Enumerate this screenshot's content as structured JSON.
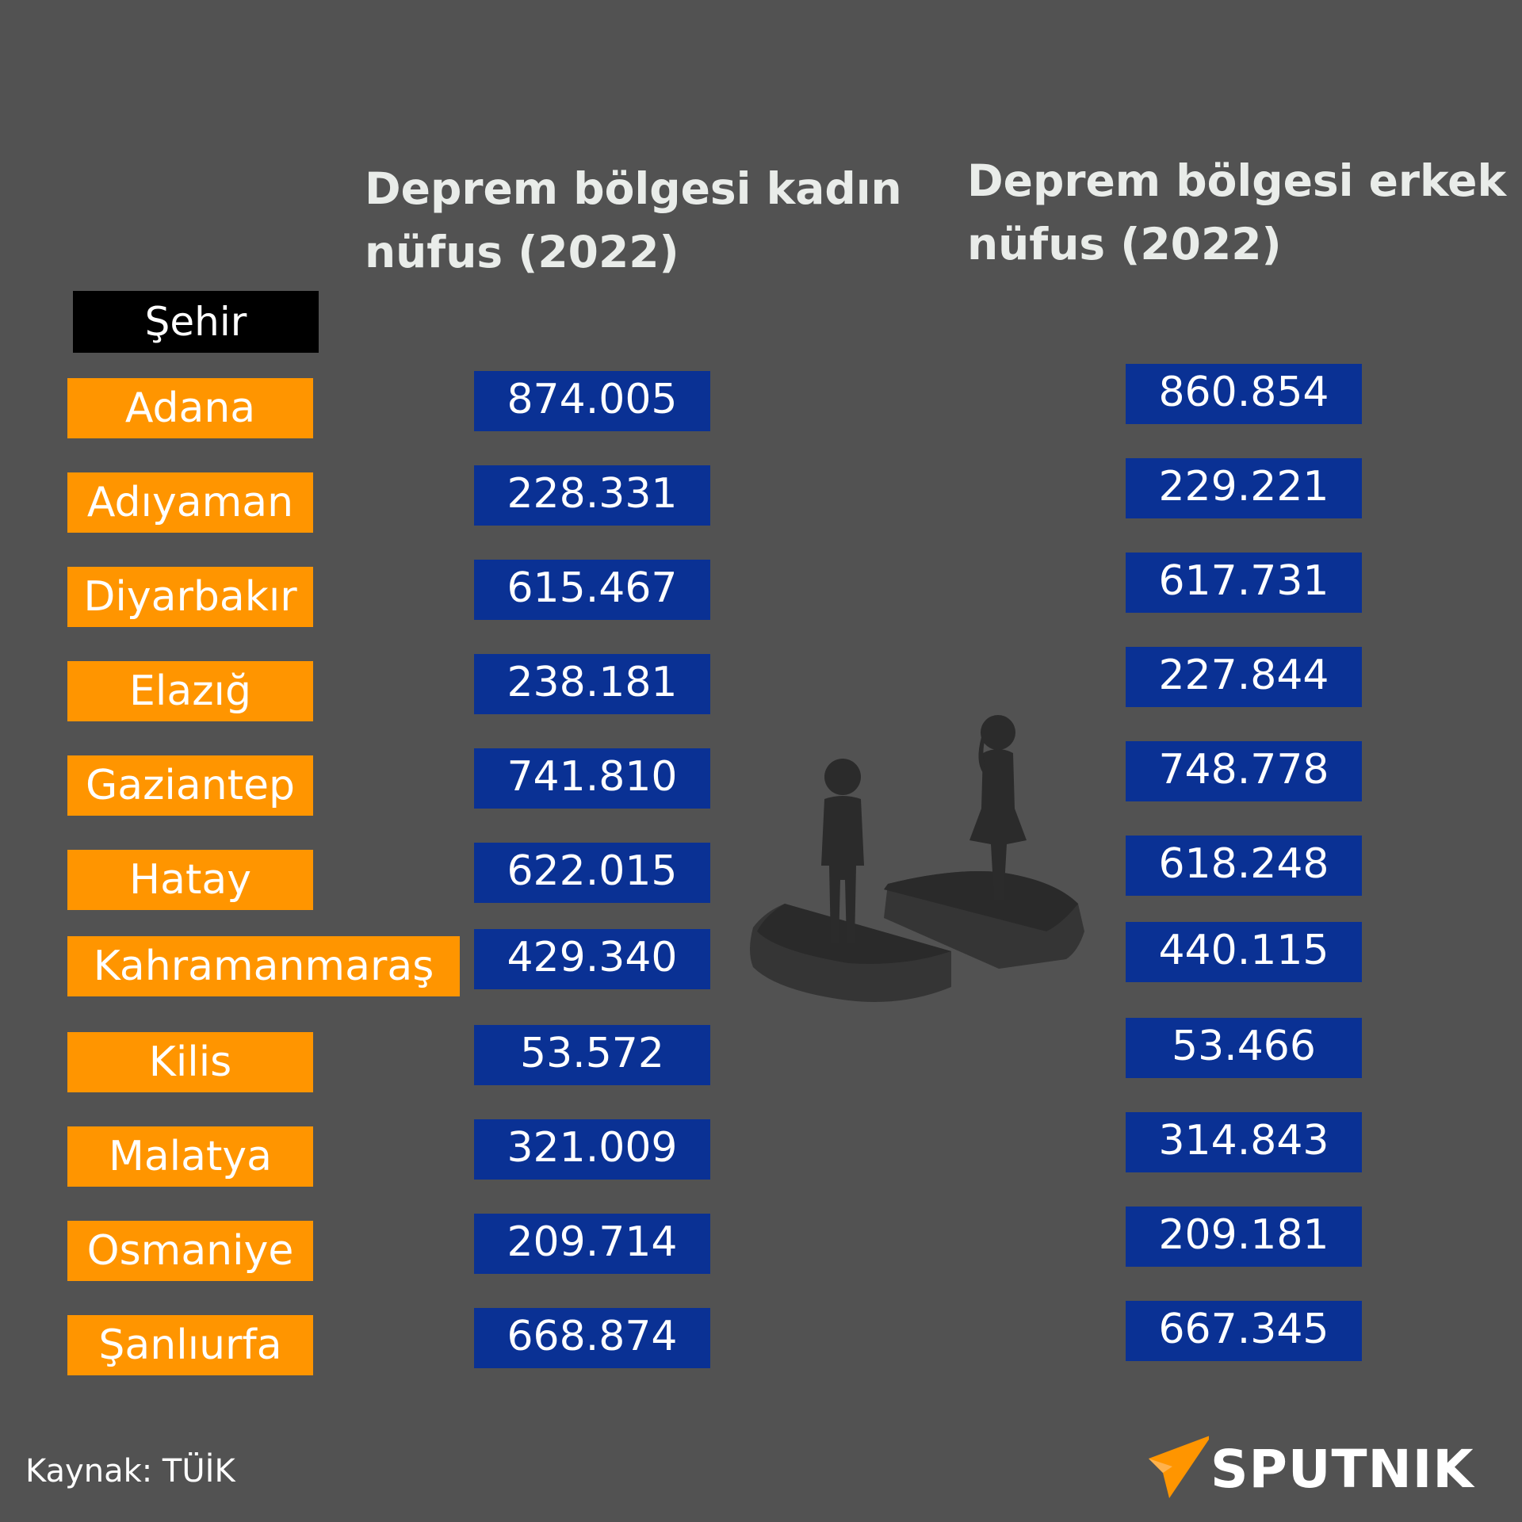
{
  "headings": {
    "female_line1": "Deprem bölgesi kadın",
    "female_line2": "nüfus  (2022)",
    "male_line1": "Deprem bölgesi erkek",
    "male_line2": "nüfus  (2022)"
  },
  "city_header": "Şehir",
  "source": "Kaynak: TÜİK",
  "logo": "SPUTNIK",
  "colors": {
    "background": "#525252",
    "city": "#ff9500",
    "value": "#0a3194",
    "header": "#000000"
  },
  "chart_data": {
    "type": "table",
    "columns": [
      "Şehir",
      "Deprem bölgesi kadın nüfus (2022)",
      "Deprem bölgesi erkek nüfus (2022)"
    ],
    "rows": [
      {
        "city": "Adana",
        "female": "874.005",
        "male": "860.854"
      },
      {
        "city": "Adıyaman",
        "female": "228.331",
        "male": "229.221"
      },
      {
        "city": "Diyarbakır",
        "female": "615.467",
        "male": "617.731"
      },
      {
        "city": "Elazığ",
        "female": "238.181",
        "male": "227.844"
      },
      {
        "city": "Gaziantep",
        "female": "741.810",
        "male": "748.778"
      },
      {
        "city": "Hatay",
        "female": "622.015",
        "male": "618.248"
      },
      {
        "city": "Kahramanmaraş",
        "female": "429.340",
        "male": "440.115"
      },
      {
        "city": "Kilis",
        "female": "53.572",
        "male": "53.466"
      },
      {
        "city": "Malatya",
        "female": "321.009",
        "male": "314.843"
      },
      {
        "city": "Osmaniye",
        "female": "209.714",
        "male": "209.181"
      },
      {
        "city": "Şanlıurfa",
        "female": "668.874",
        "male": "667.345"
      }
    ]
  }
}
